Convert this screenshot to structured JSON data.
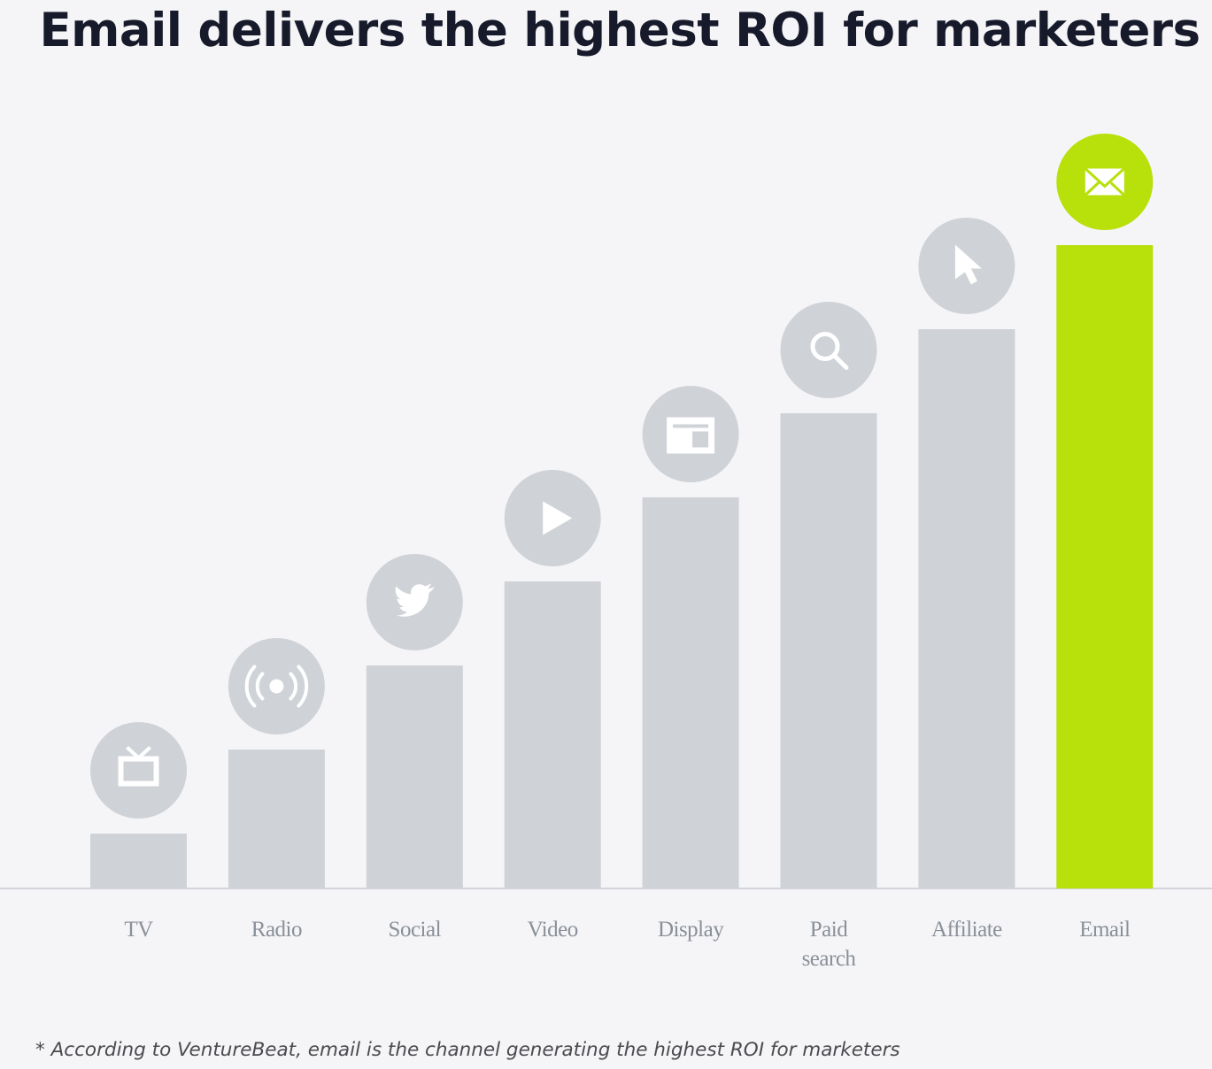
{
  "chart_data": {
    "type": "bar",
    "title": "Email delivers the highest ROI for marketers",
    "xlabel": "",
    "ylabel": "",
    "categories": [
      "TV",
      "Radio",
      "Social",
      "Video",
      "Display",
      "Paid search",
      "Affiliate",
      "Email"
    ],
    "labels": [
      [
        "TV"
      ],
      [
        "Radio"
      ],
      [
        "Social"
      ],
      [
        "Video"
      ],
      [
        "Display"
      ],
      [
        "Paid",
        "search"
      ],
      [
        "Affiliate"
      ],
      [
        "Email"
      ]
    ],
    "values": [
      1,
      2,
      3,
      4,
      5,
      6,
      7,
      8
    ],
    "value_meaning": "relative ROI rank (no axis shown)",
    "icons": [
      "tv-icon",
      "radio-broadcast-icon",
      "twitter-bird-icon",
      "play-icon",
      "display-window-icon",
      "search-icon",
      "cursor-pointer-icon",
      "envelope-icon"
    ],
    "highlight_index": 7,
    "colors": {
      "bar": "#cfd2d7",
      "highlight": "#b8e00a",
      "icon": "#ffffff",
      "baseline": "#c8cacf"
    },
    "grid": false,
    "legend": "none",
    "footnote": "* According to VentureBeat, email is the channel generating the highest ROI for marketers"
  }
}
